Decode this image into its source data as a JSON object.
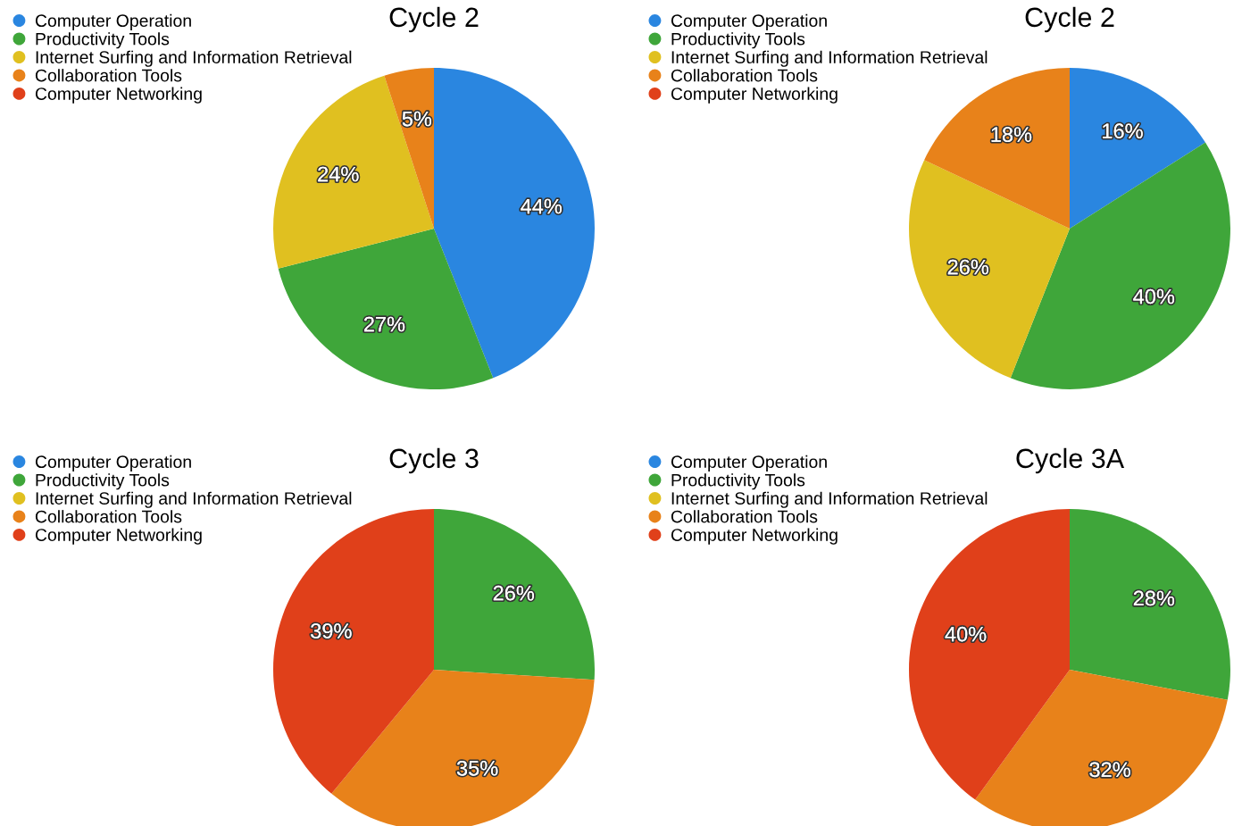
{
  "chart_data": [
    {
      "type": "pie",
      "title": "Cycle 2",
      "legend": "top left",
      "categories": [
        "Computer Operation",
        "Productivity Tools",
        "Internet Surfing and Information Retrieval",
        "Collaboration Tools",
        "Computer Networking"
      ],
      "colors": [
        "#2a86e0",
        "#3fa63a",
        "#e0c020",
        "#e8821a",
        "#e0401a"
      ],
      "values": [
        44,
        27,
        24,
        5,
        0
      ],
      "value_labels": [
        "44%",
        "27%",
        "24%",
        "5%",
        null
      ]
    },
    {
      "type": "pie",
      "title": "Cycle 2",
      "legend": "top left",
      "categories": [
        "Computer Operation",
        "Productivity Tools",
        "Internet Surfing and Information Retrieval",
        "Collaboration Tools",
        "Computer Networking"
      ],
      "colors": [
        "#2a86e0",
        "#3fa63a",
        "#e0c020",
        "#e8821a",
        "#e0401a"
      ],
      "values": [
        16,
        40,
        26,
        18,
        0
      ],
      "value_labels": [
        "16%",
        "40%",
        "26%",
        "18%",
        null
      ]
    },
    {
      "type": "pie",
      "title": "Cycle 3",
      "legend": "top left",
      "categories": [
        "Computer Operation",
        "Productivity Tools",
        "Internet Surfing and Information Retrieval",
        "Collaboration Tools",
        "Computer Networking"
      ],
      "colors": [
        "#2a86e0",
        "#3fa63a",
        "#e0c020",
        "#e8821a",
        "#e0401a"
      ],
      "values": [
        0,
        26,
        0,
        35,
        39
      ],
      "value_labels": [
        null,
        "26%",
        null,
        "35%",
        "39%"
      ]
    },
    {
      "type": "pie",
      "title": "Cycle 3A",
      "legend": "top left",
      "categories": [
        "Computer Operation",
        "Productivity Tools",
        "Internet Surfing and Information Retrieval",
        "Collaboration Tools",
        "Computer Networking"
      ],
      "colors": [
        "#2a86e0",
        "#3fa63a",
        "#e0c020",
        "#e8821a",
        "#e0401a"
      ],
      "values": [
        0,
        28,
        0,
        32,
        40
      ],
      "value_labels": [
        null,
        "28%",
        null,
        "32%",
        "40%"
      ]
    }
  ]
}
